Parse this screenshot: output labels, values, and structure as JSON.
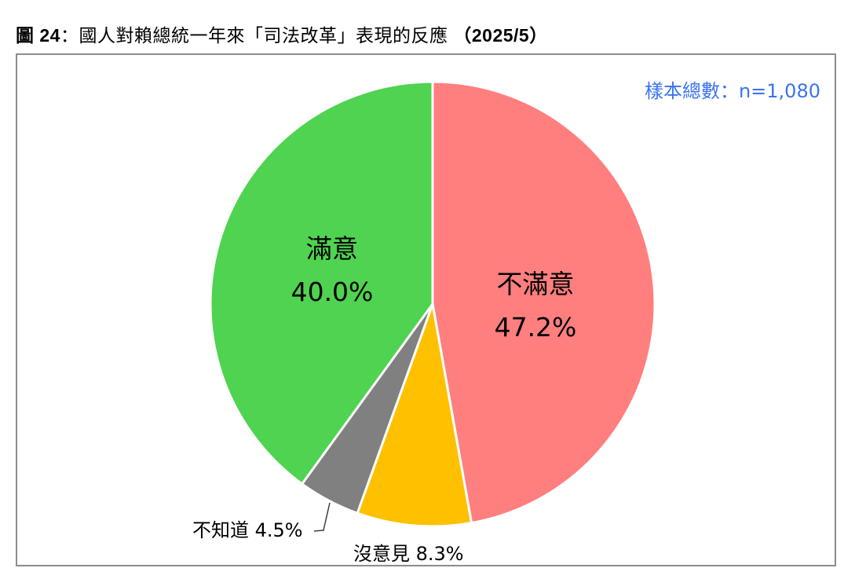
{
  "title": {
    "prefix": "圖 24",
    "text": "：國人對賴總統一年來「司法改革」表現的反應 ",
    "date": "（2025/5）"
  },
  "sample_size_label": "樣本總數：n=1,080",
  "colors": {
    "dissatisfied": "#ff7f7f",
    "no_opinion": "#ffc000",
    "dont_know": "#808080",
    "satisfied": "#4fd350",
    "sample_text": "#3b73f0",
    "frame": "#8c8c8c"
  },
  "labels": {
    "dissatisfied_name": "不滿意",
    "dissatisfied_value": "47.2%",
    "satisfied_name": "滿意",
    "satisfied_value": "40.0%",
    "dont_know": "不知道 4.5%",
    "no_opinion": "沒意見 8.3%"
  },
  "chart_data": {
    "type": "pie",
    "title": "圖 24：國人對賴總統一年來「司法改革」表現的反應 （2025/5）",
    "annotation": "樣本總數：n=1,080",
    "categories": [
      "不滿意",
      "沒意見",
      "不知道",
      "滿意"
    ],
    "values": [
      47.2,
      8.3,
      4.5,
      40.0
    ],
    "unit": "%",
    "start_angle": "12 o'clock, clockwise",
    "colors": [
      "#ff7f7f",
      "#ffc000",
      "#808080",
      "#4fd350"
    ],
    "legend": "none (data labels on/near slices)"
  }
}
